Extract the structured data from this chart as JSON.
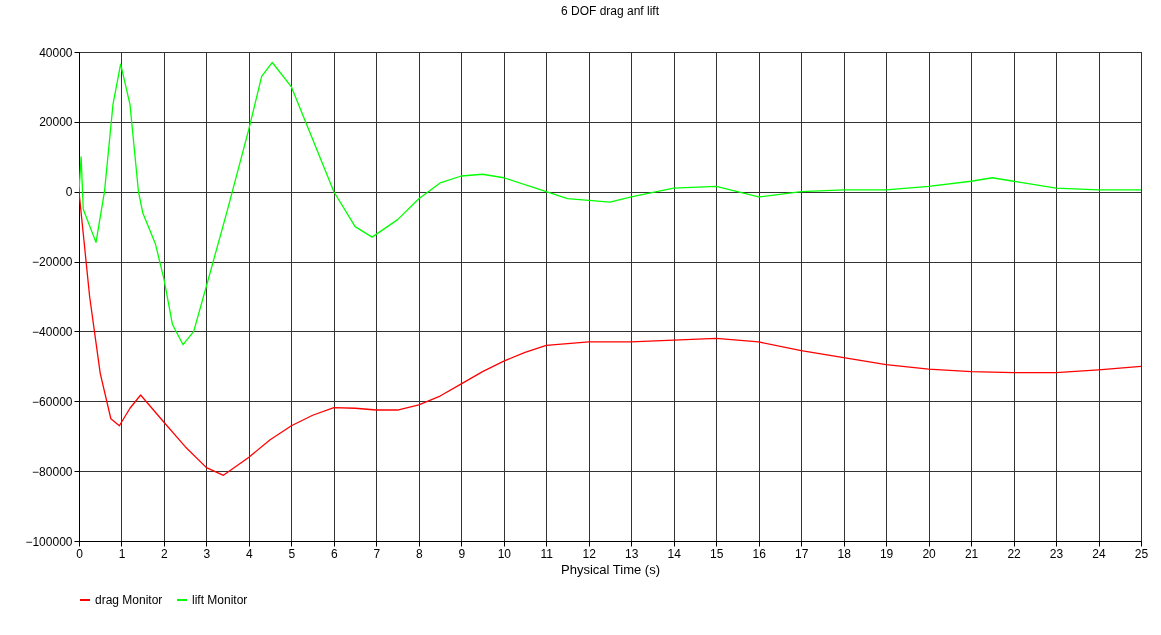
{
  "chart_data": {
    "type": "line",
    "title": "6 DOF drag anf lift",
    "xlabel": "Physical Time (s)",
    "xlim": [
      0,
      25
    ],
    "xticks": [
      0,
      1,
      2,
      3,
      4,
      5,
      6,
      7,
      8,
      9,
      10,
      11,
      12,
      13,
      14,
      15,
      16,
      17,
      18,
      19,
      20,
      21,
      22,
      23,
      24,
      25
    ],
    "ylim": [
      -100000,
      40000
    ],
    "yticks": [
      -100000,
      -80000,
      -60000,
      -40000,
      -20000,
      0,
      20000,
      40000
    ],
    "grid": true,
    "legend": "bottom",
    "marker": "none",
    "line_style": "solid",
    "series": [
      {
        "name": "drag Monitor",
        "color": "#ff0000",
        "x": [
          0,
          0.25,
          0.5,
          0.75,
          0.95,
          1.2,
          1.45,
          2,
          2.5,
          3,
          3.4,
          4,
          4.5,
          5,
          5.5,
          6,
          6.5,
          7,
          7.5,
          8,
          8.5,
          9,
          9.5,
          10,
          10.5,
          11,
          12,
          13,
          14,
          15,
          16,
          17,
          18,
          19,
          20,
          21,
          22,
          23,
          24,
          25
        ],
        "values": [
          0,
          -30000,
          -52000,
          -65000,
          -67000,
          -62000,
          -58200,
          -66000,
          -73000,
          -79000,
          -81200,
          -76000,
          -71000,
          -67000,
          -64000,
          -61800,
          -62000,
          -62500,
          -62500,
          -61000,
          -58500,
          -55000,
          -51500,
          -48500,
          -46000,
          -44000,
          -43000,
          -43000,
          -42500,
          -42000,
          -43000,
          -45500,
          -47500,
          -49500,
          -50800,
          -51500,
          -51800,
          -51800,
          -51000,
          -50000
        ]
      },
      {
        "name": "lift Monitor",
        "color": "#00ff00",
        "x": [
          0,
          0.05,
          0.1,
          0.4,
          0.6,
          0.8,
          0.98,
          1.2,
          1.4,
          1.5,
          1.8,
          2,
          2.2,
          2.45,
          2.7,
          3,
          3.5,
          4,
          4.3,
          4.55,
          5,
          5.5,
          6,
          6.5,
          6.9,
          7.5,
          8,
          8.5,
          9,
          9.5,
          10,
          11,
          11.5,
          12.5,
          13,
          14,
          15,
          16,
          17,
          18,
          19,
          20,
          21,
          21.5,
          22,
          23,
          24,
          25
        ],
        "values": [
          0,
          10000,
          -5000,
          -14500,
          0,
          25000,
          36500,
          25000,
          0,
          -6000,
          -15000,
          -25000,
          -38000,
          -43800,
          -40000,
          -27000,
          -5000,
          18000,
          33000,
          37000,
          30000,
          15000,
          0,
          -10000,
          -13000,
          -8000,
          -2000,
          2500,
          4500,
          5000,
          4000,
          0,
          -2000,
          -3000,
          -1500,
          1000,
          1500,
          -1500,
          0,
          500,
          500,
          1500,
          3000,
          4000,
          3000,
          1000,
          500,
          500
        ]
      }
    ]
  }
}
